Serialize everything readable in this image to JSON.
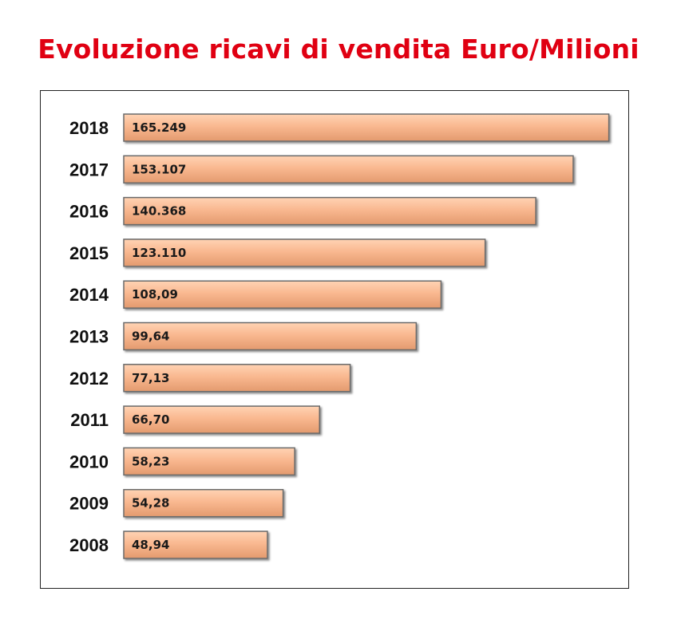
{
  "chart_data": {
    "type": "bar",
    "orientation": "horizontal",
    "title": "Evoluzione ricavi di vendita Euro/Milioni",
    "categories": [
      "2018",
      "2017",
      "2016",
      "2015",
      "2014",
      "2013",
      "2012",
      "2011",
      "2010",
      "2009",
      "2008"
    ],
    "values": [
      165.249,
      153.107,
      140.368,
      123.11,
      108.09,
      99.64,
      77.13,
      66.7,
      58.23,
      54.28,
      48.94
    ],
    "value_labels": [
      "165.249",
      "153.107",
      "140.368",
      "123.110",
      "108,09",
      "99,64",
      "77,13",
      "66,70",
      "58,23",
      "54,28",
      "48,94"
    ],
    "xlabel": "",
    "ylabel": "",
    "grid": false,
    "legend": "none",
    "colors": {
      "bar_fill_light": "#ffd3b4",
      "bar_fill": "#f9b890",
      "bar_fill_dark": "#e39a6e",
      "bar_border": "#6a6a6a",
      "title": "#e00012"
    }
  }
}
